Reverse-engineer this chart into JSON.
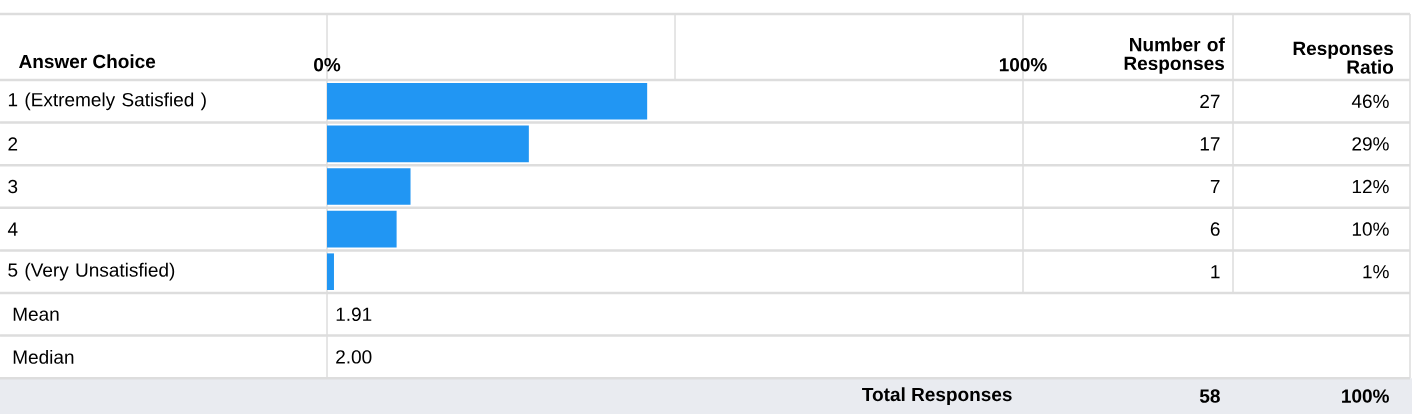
{
  "chart_data": {
    "type": "bar",
    "orientation": "horizontal",
    "ylabel": "Answer Choice",
    "categories": [
      "1 (Extremely Satisfied )",
      "2",
      "3",
      "4",
      "5 (Very Unsatisfied)"
    ],
    "values": [
      46,
      29,
      12,
      10,
      1
    ],
    "value_labels": [
      "46%",
      "29%",
      "12%",
      "10%",
      "1%"
    ],
    "color": "#2196f3",
    "grid": "y",
    "xlim": [
      0,
      100
    ],
    "xticks": [
      {
        "value": 0,
        "label": "0%"
      },
      {
        "value": 100,
        "label": "100%"
      }
    ],
    "annotations": [
      "Number of Responses",
      "Responses Ratio",
      "27",
      "17",
      "7",
      "6",
      "1",
      "Mean",
      "1.91",
      "Median",
      "2.00",
      "Total Responses",
      "58",
      "100%"
    ]
  }
}
